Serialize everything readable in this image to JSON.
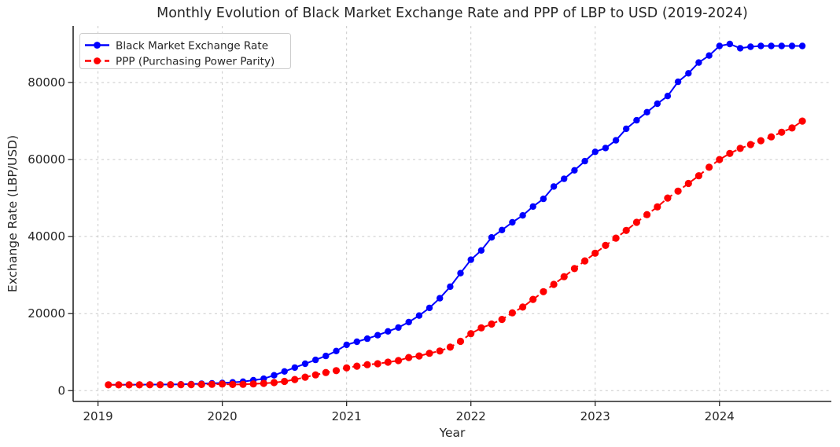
{
  "chart_data": {
    "type": "line",
    "title": "Monthly Evolution of Black Market Exchange Rate and PPP of LBP to USD (2019-2024)",
    "xlabel": "Year",
    "ylabel": "Exchange Rate (LBP/USD)",
    "grid": true,
    "legend_position": "upper left",
    "x_ticks": [
      2019,
      2020,
      2021,
      2022,
      2023,
      2024
    ],
    "y_ticks": [
      0,
      20000,
      40000,
      60000,
      80000
    ],
    "xlim": [
      2018.8,
      2024.9
    ],
    "ylim": [
      -2800,
      94700
    ],
    "x_months": [
      "2019-01",
      "2019-02",
      "2019-03",
      "2019-04",
      "2019-05",
      "2019-06",
      "2019-07",
      "2019-08",
      "2019-09",
      "2019-10",
      "2019-11",
      "2019-12",
      "2020-01",
      "2020-02",
      "2020-03",
      "2020-04",
      "2020-05",
      "2020-06",
      "2020-07",
      "2020-08",
      "2020-09",
      "2020-10",
      "2020-11",
      "2020-12",
      "2021-01",
      "2021-02",
      "2021-03",
      "2021-04",
      "2021-05",
      "2021-06",
      "2021-07",
      "2021-08",
      "2021-09",
      "2021-10",
      "2021-11",
      "2021-12",
      "2022-01",
      "2022-02",
      "2022-03",
      "2022-04",
      "2022-05",
      "2022-06",
      "2022-07",
      "2022-08",
      "2022-09",
      "2022-10",
      "2022-11",
      "2022-12",
      "2023-01",
      "2023-02",
      "2023-03",
      "2023-04",
      "2023-05",
      "2023-06",
      "2023-07",
      "2023-08",
      "2023-09",
      "2023-10",
      "2023-11",
      "2023-12",
      "2024-01",
      "2024-02",
      "2024-03",
      "2024-04",
      "2024-05",
      "2024-06",
      "2024-07",
      "2024-08"
    ],
    "series": [
      {
        "name": "Black Market Exchange Rate",
        "color": "#0000ff",
        "line_style": "solid",
        "marker": "circle",
        "values": [
          1550,
          1550,
          1560,
          1570,
          1580,
          1590,
          1600,
          1650,
          1700,
          1800,
          1900,
          2000,
          2150,
          2350,
          2700,
          3100,
          4000,
          5000,
          6000,
          7000,
          8000,
          9000,
          10300,
          11900,
          12700,
          13500,
          14400,
          15400,
          16400,
          17800,
          19500,
          21500,
          24000,
          27000,
          30500,
          34000,
          36400,
          39800,
          41700,
          43700,
          45500,
          47800,
          49800,
          53000,
          55000,
          57200,
          59600,
          62000,
          63000,
          65000,
          68000,
          70200,
          72300,
          74500,
          76500,
          80200,
          82400,
          85200,
          87000,
          89500,
          90000,
          88900,
          89300,
          89500,
          89500,
          89500,
          89500,
          89500
        ]
      },
      {
        "name": "PPP (Purchasing Power Parity)",
        "color": "#ff0000",
        "line_style": "dashed",
        "marker": "circle",
        "values": [
          1500,
          1500,
          1500,
          1510,
          1520,
          1530,
          1540,
          1550,
          1570,
          1600,
          1650,
          1700,
          1600,
          1650,
          1750,
          1900,
          2100,
          2400,
          2900,
          3500,
          4100,
          4700,
          5200,
          5900,
          6350,
          6750,
          7000,
          7400,
          7800,
          8600,
          9000,
          9700,
          10300,
          11300,
          12800,
          14800,
          16300,
          17300,
          18500,
          20200,
          21700,
          23700,
          25700,
          27600,
          29600,
          31700,
          33700,
          35700,
          37700,
          39600,
          41600,
          43700,
          45700,
          47700,
          50000,
          51800,
          53800,
          55800,
          58000,
          60000,
          61600,
          62900,
          63900,
          64900,
          65900,
          67100,
          68200,
          70000
        ]
      }
    ],
    "style": {
      "grid_color": "#c9c9c9",
      "spine_color": "#262626",
      "text_color": "#262626",
      "background": "#ffffff"
    }
  }
}
